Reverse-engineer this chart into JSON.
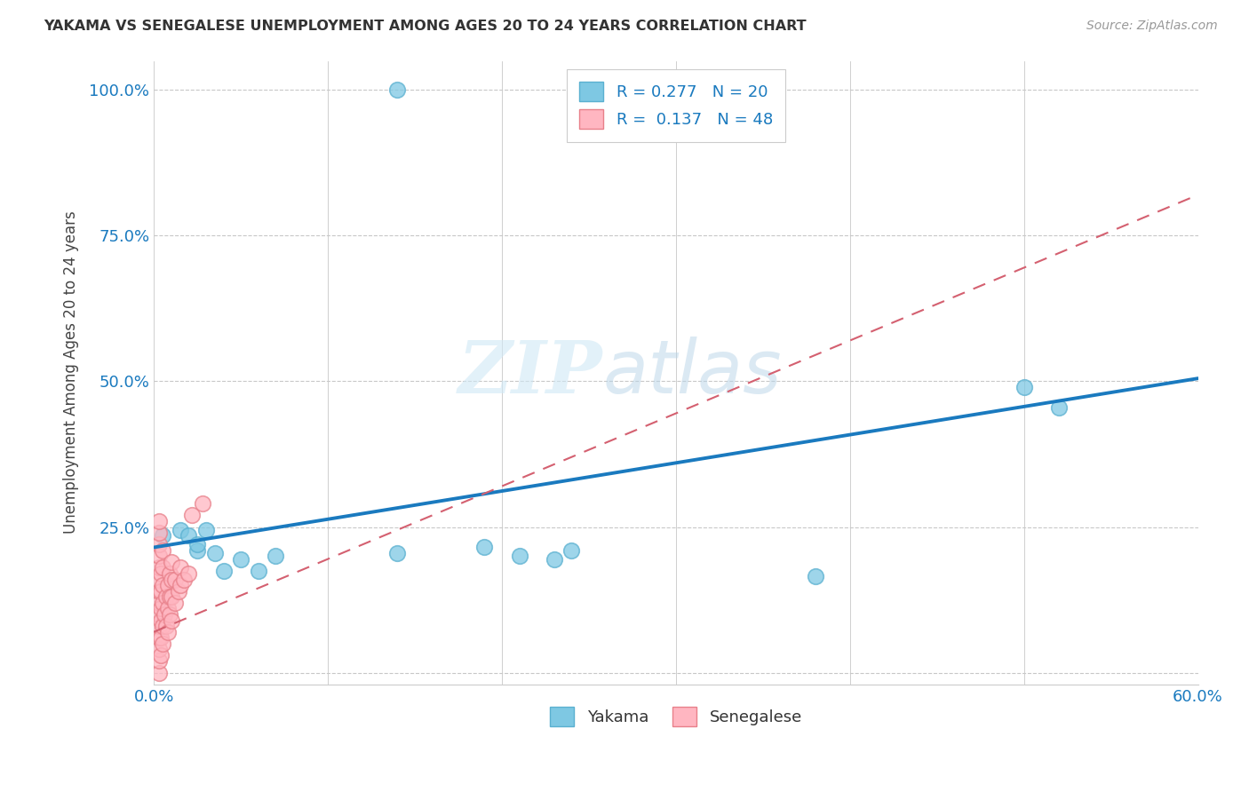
{
  "title": "YAKAMA VS SENEGALESE UNEMPLOYMENT AMONG AGES 20 TO 24 YEARS CORRELATION CHART",
  "source": "Source: ZipAtlas.com",
  "ylabel": "Unemployment Among Ages 20 to 24 years",
  "yakama_R": "0.277",
  "yakama_N": "20",
  "senegalese_R": "0.137",
  "senegalese_N": "48",
  "xlim": [
    0.0,
    0.6
  ],
  "ylim": [
    -0.02,
    1.05
  ],
  "xticks": [
    0.0,
    0.1,
    0.2,
    0.3,
    0.4,
    0.5,
    0.6
  ],
  "yticks": [
    0.0,
    0.25,
    0.5,
    0.75,
    1.0
  ],
  "ytick_labels": [
    "",
    "25.0%",
    "50.0%",
    "75.0%",
    "100.0%"
  ],
  "xtick_labels": [
    "0.0%",
    "",
    "",
    "",
    "",
    "",
    "60.0%"
  ],
  "grid_color": "#c8c8c8",
  "yakama_color": "#7ec8e3",
  "yakama_edge_color": "#5ab0d0",
  "senegalese_color": "#ffb6c1",
  "senegalese_edge_color": "#e8808a",
  "trendline_yakama_color": "#1a7abf",
  "trendline_senegalese_color": "#d46070",
  "watermark_zip": "ZIP",
  "watermark_atlas": "atlas",
  "yakama_x": [
    0.005,
    0.015,
    0.02,
    0.025,
    0.025,
    0.03,
    0.035,
    0.04,
    0.05,
    0.06,
    0.07,
    0.14,
    0.19,
    0.21,
    0.23,
    0.24,
    0.38,
    0.5,
    0.52,
    0.14
  ],
  "yakama_y": [
    0.235,
    0.245,
    0.235,
    0.21,
    0.22,
    0.245,
    0.205,
    0.175,
    0.195,
    0.175,
    0.2,
    0.205,
    0.215,
    0.2,
    0.195,
    0.21,
    0.165,
    0.49,
    0.455,
    1.0
  ],
  "senegalese_x": [
    0.003,
    0.003,
    0.003,
    0.003,
    0.003,
    0.003,
    0.003,
    0.003,
    0.003,
    0.003,
    0.003,
    0.003,
    0.003,
    0.003,
    0.004,
    0.004,
    0.004,
    0.004,
    0.004,
    0.004,
    0.005,
    0.005,
    0.005,
    0.005,
    0.005,
    0.005,
    0.006,
    0.007,
    0.007,
    0.008,
    0.008,
    0.008,
    0.009,
    0.009,
    0.009,
    0.01,
    0.01,
    0.01,
    0.01,
    0.012,
    0.012,
    0.014,
    0.015,
    0.015,
    0.017,
    0.02,
    0.022,
    0.028
  ],
  "senegalese_y": [
    0.0,
    0.02,
    0.04,
    0.06,
    0.08,
    0.1,
    0.12,
    0.14,
    0.16,
    0.18,
    0.2,
    0.22,
    0.24,
    0.26,
    0.03,
    0.06,
    0.09,
    0.11,
    0.14,
    0.17,
    0.05,
    0.08,
    0.12,
    0.15,
    0.18,
    0.21,
    0.1,
    0.08,
    0.13,
    0.07,
    0.11,
    0.15,
    0.1,
    0.13,
    0.17,
    0.09,
    0.13,
    0.16,
    0.19,
    0.12,
    0.16,
    0.14,
    0.15,
    0.18,
    0.16,
    0.17,
    0.27,
    0.29
  ],
  "trendline_yakama_x0": 0.0,
  "trendline_yakama_y0": 0.215,
  "trendline_yakama_x1": 0.6,
  "trendline_yakama_y1": 0.505,
  "trendline_senegalese_x0": 0.0,
  "trendline_senegalese_y0": 0.07,
  "trendline_senegalese_x1": 0.6,
  "trendline_senegalese_y1": 0.82
}
